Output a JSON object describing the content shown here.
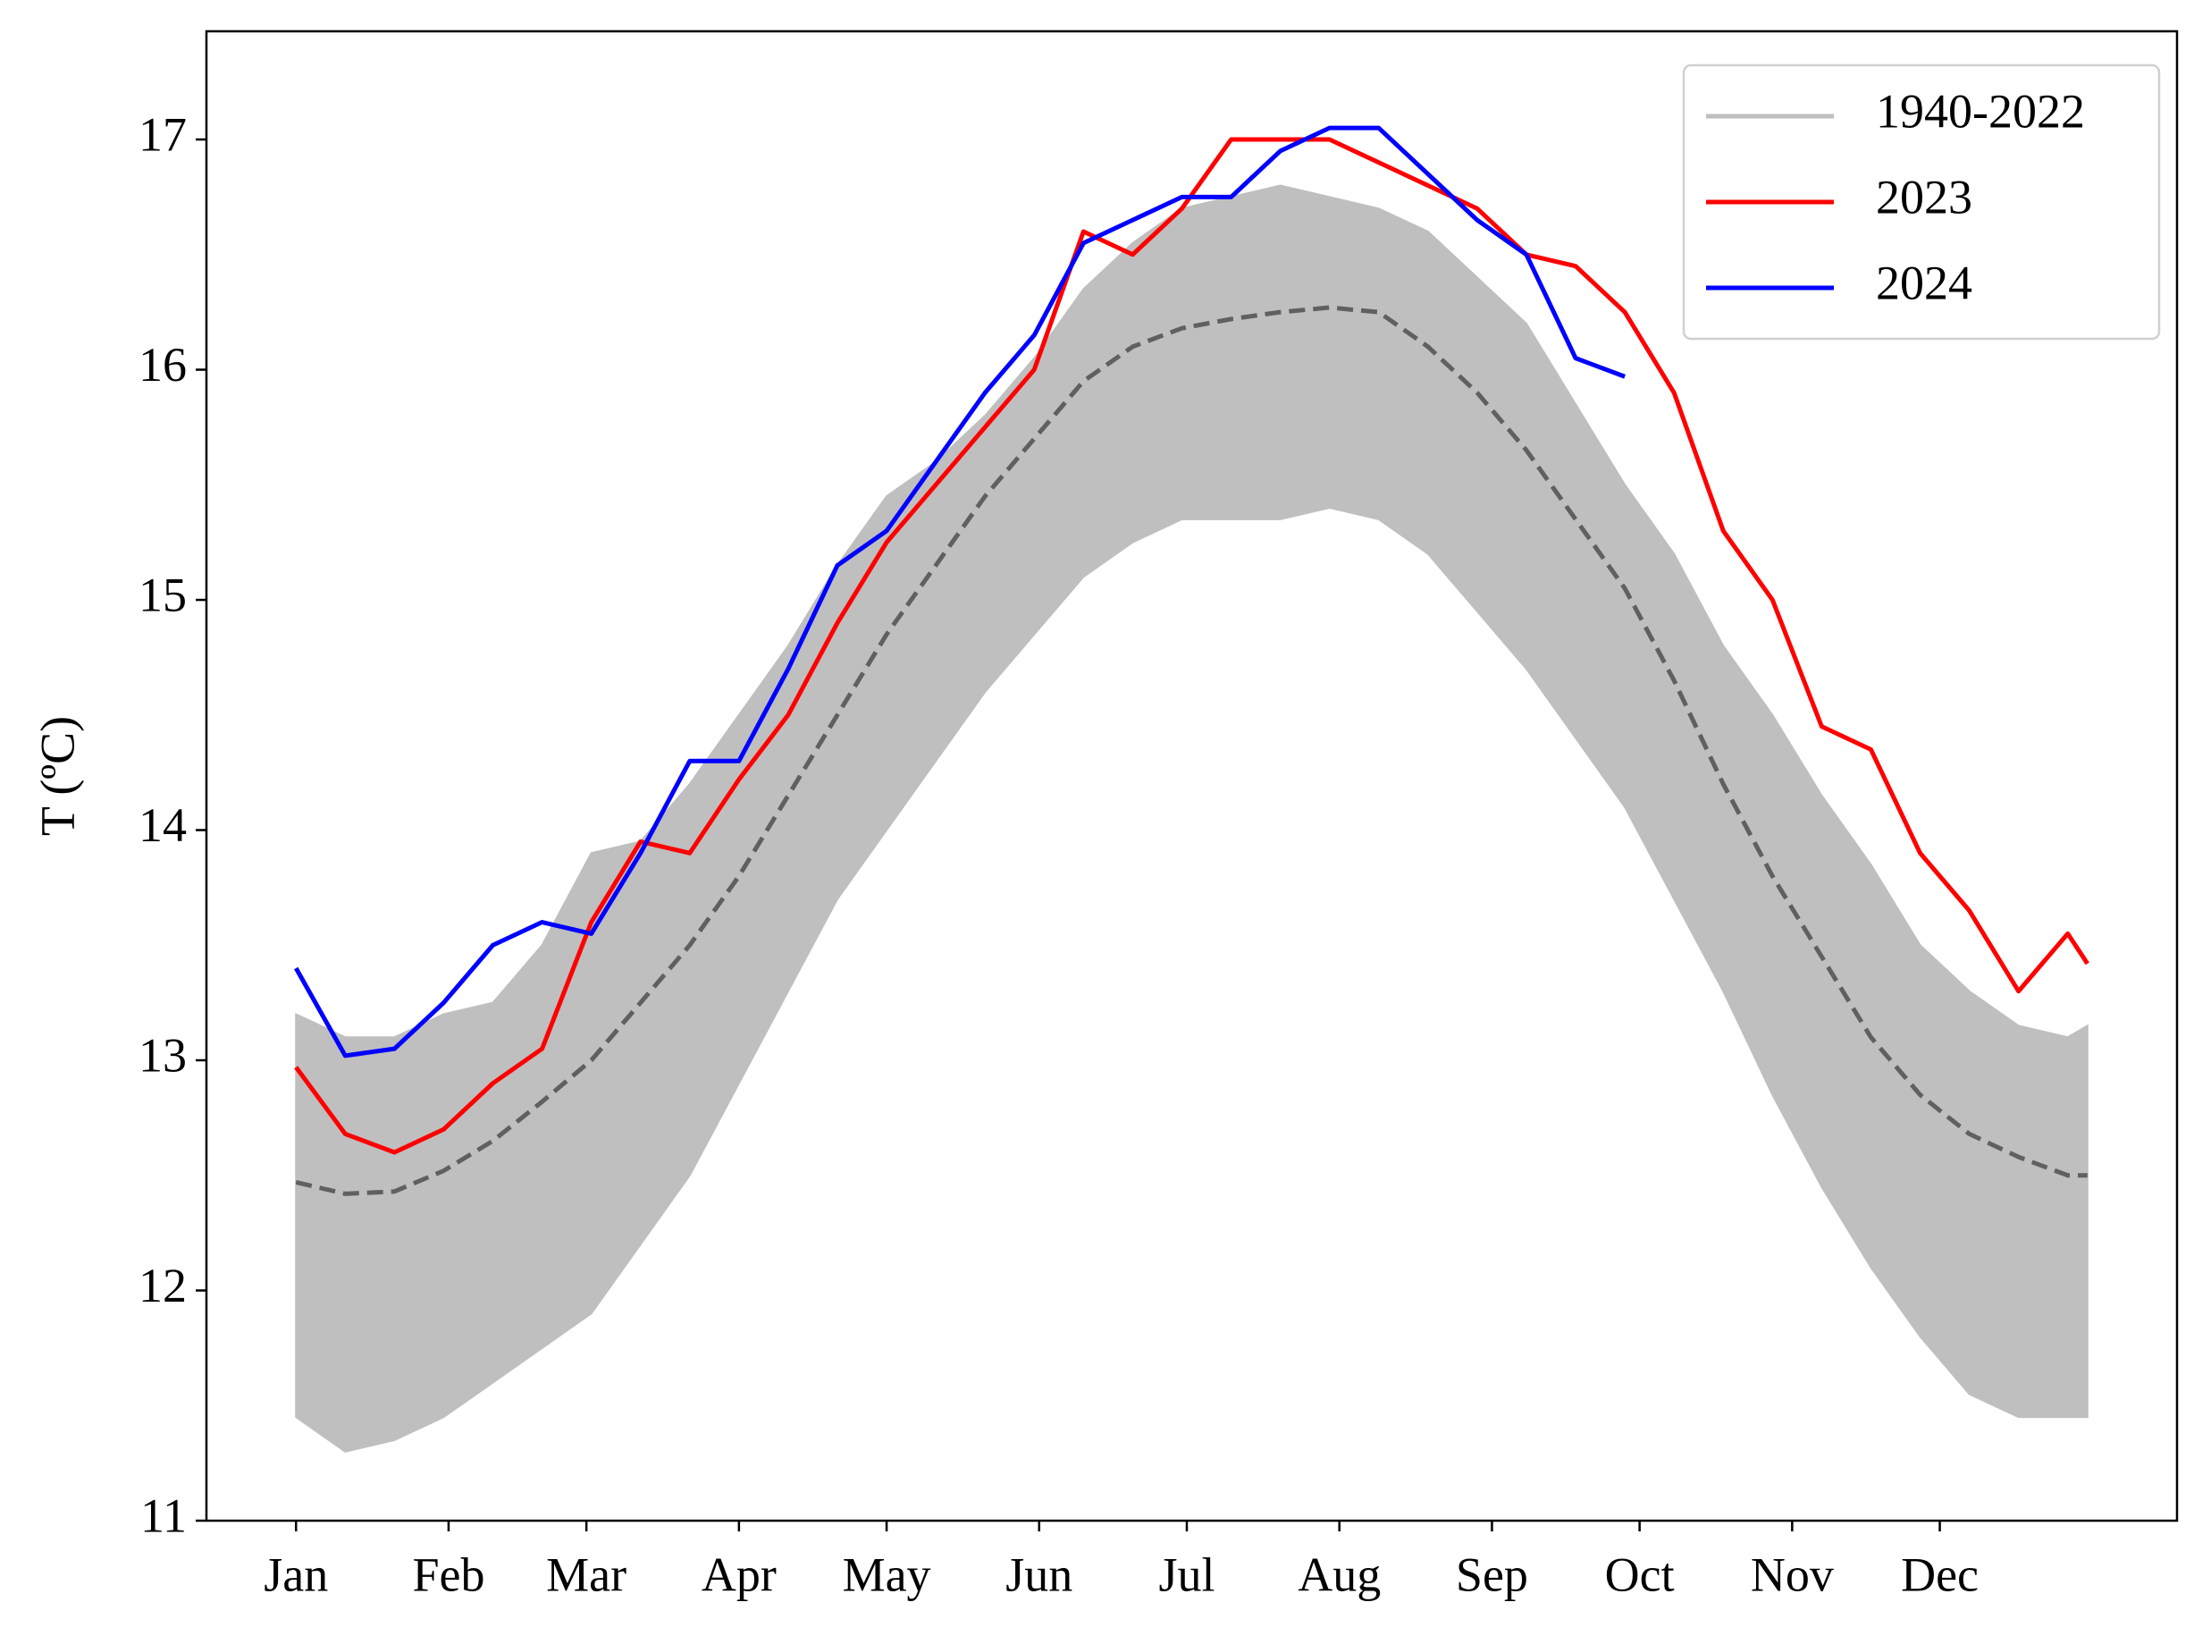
{
  "chart_data": {
    "type": "line",
    "y_label": "T (ºC)",
    "x": [
      1,
      11,
      21,
      31,
      41,
      51,
      61,
      71,
      81,
      91,
      101,
      111,
      121,
      131,
      141,
      151,
      161,
      171,
      181,
      191,
      201,
      211,
      221,
      231,
      241,
      251,
      261,
      271,
      281,
      291,
      301,
      311,
      321,
      331,
      341,
      351,
      361,
      365
    ],
    "xlim": [
      -17.2,
      383.2
    ],
    "xticks": [
      {
        "value": 1,
        "label": "Jan"
      },
      {
        "value": 32,
        "label": "Feb"
      },
      {
        "value": 60,
        "label": "Mar"
      },
      {
        "value": 91,
        "label": "Apr"
      },
      {
        "value": 121,
        "label": "May"
      },
      {
        "value": 152,
        "label": "Jun"
      },
      {
        "value": 182,
        "label": "Jul"
      },
      {
        "value": 213,
        "label": "Aug"
      },
      {
        "value": 244,
        "label": "Sep"
      },
      {
        "value": 274,
        "label": "Oct"
      },
      {
        "value": 305,
        "label": "Nov"
      },
      {
        "value": 335,
        "label": "Dec"
      }
    ],
    "ylim": [
      11,
      17.47
    ],
    "yticks": [
      11,
      12,
      13,
      14,
      15,
      16,
      17
    ],
    "legend": "upper right",
    "series": [
      {
        "name": "1940-2022",
        "color": "#bfbfbf",
        "kind": "band",
        "low": [
          11.45,
          11.3,
          11.35,
          11.45,
          11.6,
          11.75,
          11.9,
          12.2,
          12.5,
          12.9,
          13.3,
          13.7,
          14.0,
          14.3,
          14.6,
          14.85,
          15.1,
          15.25,
          15.35,
          15.35,
          15.35,
          15.4,
          15.35,
          15.2,
          14.95,
          14.7,
          14.4,
          14.1,
          13.7,
          13.3,
          12.85,
          12.45,
          12.1,
          11.8,
          11.55,
          11.45,
          11.45,
          11.45
        ],
        "high": [
          13.2,
          13.1,
          13.1,
          13.2,
          13.25,
          13.5,
          13.9,
          13.95,
          14.2,
          14.5,
          14.8,
          15.15,
          15.45,
          15.6,
          15.8,
          16.05,
          16.35,
          16.55,
          16.7,
          16.75,
          16.8,
          16.75,
          16.7,
          16.6,
          16.4,
          16.2,
          15.85,
          15.5,
          15.2,
          14.8,
          14.5,
          14.15,
          13.85,
          13.5,
          13.3,
          13.15,
          13.1,
          13.15
        ]
      },
      {
        "name": "2023",
        "color": "#ff0000",
        "kind": "line",
        "values": [
          12.97,
          12.68,
          12.6,
          12.7,
          12.9,
          13.05,
          13.6,
          13.95,
          13.9,
          14.22,
          14.5,
          14.9,
          15.25,
          15.5,
          15.75,
          16.0,
          16.6,
          16.5,
          16.7,
          17.0,
          17.0,
          17.0,
          16.9,
          16.8,
          16.7,
          16.5,
          16.45,
          16.25,
          15.9,
          15.3,
          15.0,
          14.45,
          14.35,
          13.9,
          13.65,
          13.3,
          13.55,
          13.42
        ]
      },
      {
        "name": "2024",
        "color": "#0000ff",
        "kind": "line",
        "values": [
          13.4,
          13.02,
          13.05,
          13.25,
          13.5,
          13.6,
          13.55,
          13.9,
          14.3,
          14.3,
          14.7,
          15.15,
          15.3,
          15.6,
          15.9,
          16.15,
          16.55,
          16.65,
          16.75,
          16.75,
          16.95,
          17.05,
          17.05,
          16.85,
          16.65,
          16.5,
          16.05,
          15.97,
          null,
          null,
          null,
          null,
          null,
          null,
          null,
          null,
          null,
          null
        ]
      },
      {
        "color": "#606060",
        "kind": "line",
        "style": "dashed",
        "values": [
          12.47,
          12.42,
          12.43,
          12.52,
          12.65,
          12.82,
          13.0,
          13.25,
          13.5,
          13.8,
          14.15,
          14.5,
          14.85,
          15.15,
          15.45,
          15.7,
          15.95,
          16.1,
          16.18,
          16.22,
          16.25,
          16.27,
          16.25,
          16.1,
          15.9,
          15.65,
          15.35,
          15.05,
          14.65,
          14.2,
          13.8,
          13.45,
          13.1,
          12.85,
          12.68,
          12.58,
          12.5,
          12.5
        ]
      }
    ]
  }
}
